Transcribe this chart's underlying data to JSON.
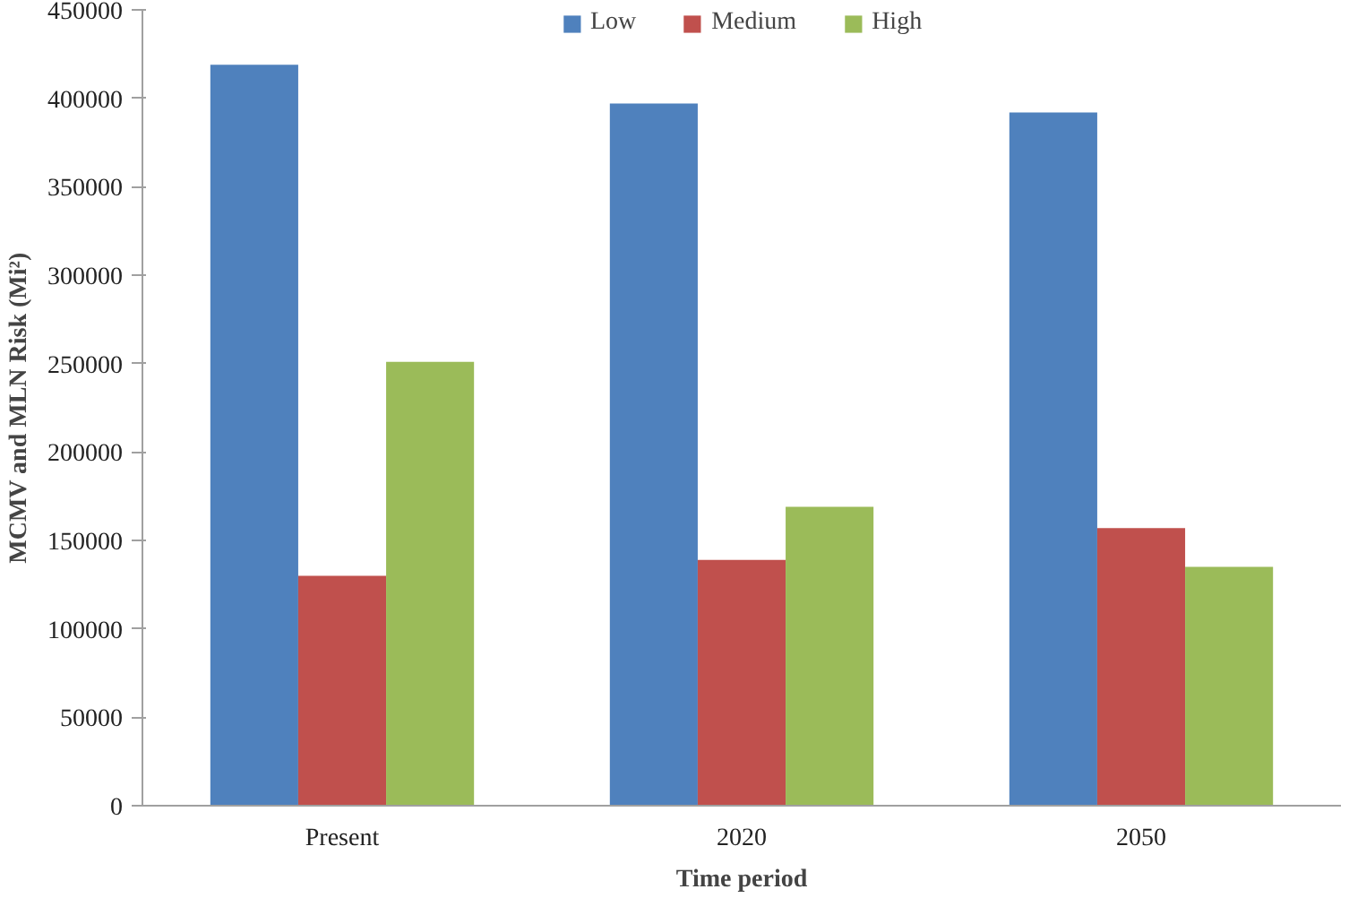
{
  "chart_data": {
    "type": "bar",
    "xlabel": "Time period",
    "ylabel": "MCMV and MLN Risk (Mi²)",
    "categories": [
      "Present",
      "2020",
      "2050"
    ],
    "series": [
      {
        "name": "Low",
        "color": "#4f81bd",
        "values": [
          419000,
          397000,
          392000
        ]
      },
      {
        "name": "Medium",
        "color": "#c0504d",
        "values": [
          130000,
          139000,
          157000
        ]
      },
      {
        "name": "High",
        "color": "#9bbb59",
        "values": [
          251000,
          169000,
          135000
        ]
      }
    ],
    "ylim": [
      0,
      450000
    ],
    "yticks": [
      0,
      50000,
      100000,
      150000,
      200000,
      250000,
      300000,
      350000,
      400000,
      450000
    ],
    "grid": false,
    "legend": "top"
  }
}
